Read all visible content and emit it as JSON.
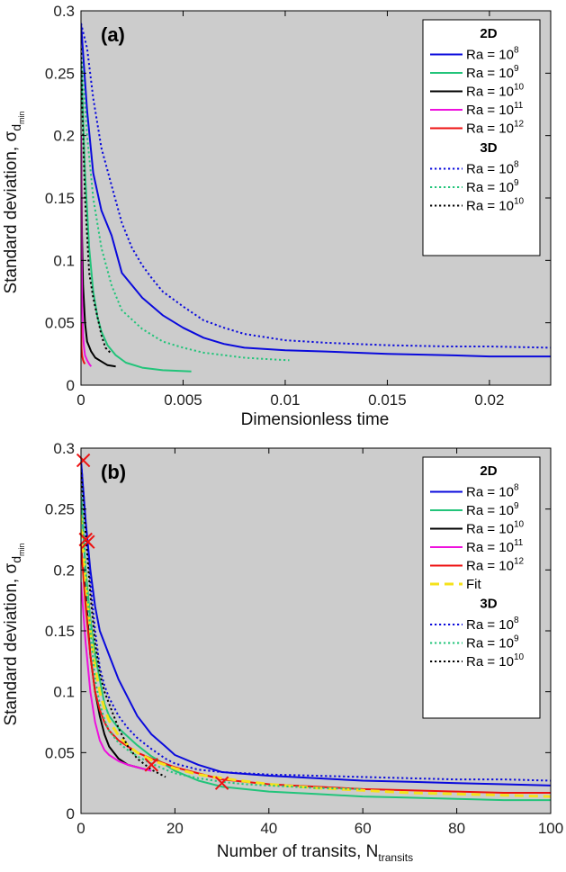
{
  "colors": {
    "blue": "#0a0adc",
    "green": "#22c47a",
    "black": "#000000",
    "magenta": "#ee11dd",
    "red": "#ee1111",
    "yellow": "#f5e21a",
    "axes_bg": "#cccccc"
  },
  "chart_data": [
    {
      "type": "line",
      "panel_label": "(a)",
      "xlabel": "Dimensionless time",
      "ylabel": "Standard deviation, σ",
      "ylabel_sub": "d",
      "ylabel_subsub": "min",
      "xlim": [
        0,
        0.023
      ],
      "ylim": [
        0,
        0.3
      ],
      "xticks": [
        0,
        0.005,
        0.01,
        0.015,
        0.02
      ],
      "xtick_labels": [
        "0",
        "0.005",
        "0.01",
        "0.015",
        "0.02"
      ],
      "yticks": [
        0,
        0.05,
        0.1,
        0.15,
        0.2,
        0.25,
        0.3
      ],
      "ytick_labels": [
        "0",
        "0.05",
        "0.1",
        "0.15",
        "0.2",
        "0.25",
        "0.3"
      ],
      "legend": {
        "position": "top-right",
        "groups": [
          {
            "heading": "2D",
            "entries": [
              {
                "base": "Ra = 10",
                "exp": "8",
                "color": "blue",
                "style": "solid"
              },
              {
                "base": "Ra = 10",
                "exp": "9",
                "color": "green",
                "style": "solid"
              },
              {
                "base": "Ra = 10",
                "exp": "10",
                "color": "black",
                "style": "solid"
              },
              {
                "base": "Ra = 10",
                "exp": "11",
                "color": "magenta",
                "style": "solid"
              },
              {
                "base": "Ra = 10",
                "exp": "12",
                "color": "red",
                "style": "solid"
              }
            ]
          },
          {
            "heading": "3D",
            "entries": [
              {
                "base": "Ra = 10",
                "exp": "8",
                "color": "blue",
                "style": "dotted"
              },
              {
                "base": "Ra = 10",
                "exp": "9",
                "color": "green",
                "style": "dotted"
              },
              {
                "base": "Ra = 10",
                "exp": "10",
                "color": "black",
                "style": "dotted"
              }
            ]
          }
        ]
      },
      "series": [
        {
          "name": "2D Ra=10^8",
          "color": "blue",
          "style": "solid",
          "x": [
            0,
            0.0003,
            0.0006,
            0.001,
            0.0015,
            0.002,
            0.003,
            0.004,
            0.005,
            0.006,
            0.007,
            0.008,
            0.01,
            0.012,
            0.015,
            0.018,
            0.02,
            0.023
          ],
          "y": [
            0.29,
            0.22,
            0.17,
            0.14,
            0.12,
            0.09,
            0.07,
            0.056,
            0.046,
            0.038,
            0.033,
            0.03,
            0.028,
            0.027,
            0.025,
            0.024,
            0.023,
            0.023
          ]
        },
        {
          "name": "2D Ra=10^9",
          "color": "green",
          "style": "solid",
          "x": [
            0,
            0.0002,
            0.0004,
            0.0006,
            0.0008,
            0.001,
            0.0013,
            0.0017,
            0.0022,
            0.003,
            0.004,
            0.0054
          ],
          "y": [
            0.26,
            0.17,
            0.11,
            0.075,
            0.055,
            0.043,
            0.032,
            0.024,
            0.018,
            0.014,
            0.012,
            0.011
          ]
        },
        {
          "name": "2D Ra=10^10",
          "color": "black",
          "style": "solid",
          "x": [
            0,
            5e-05,
            0.0001,
            0.0002,
            0.0003,
            0.0005,
            0.0007,
            0.001,
            0.0013,
            0.0017
          ],
          "y": [
            0.2,
            0.12,
            0.08,
            0.05,
            0.035,
            0.027,
            0.022,
            0.019,
            0.016,
            0.015
          ]
        },
        {
          "name": "2D Ra=10^11",
          "color": "magenta",
          "style": "solid",
          "x": [
            0,
            3e-05,
            6e-05,
            0.0001,
            0.00015,
            0.0002,
            0.0003,
            0.0004,
            0.0005
          ],
          "y": [
            0.2,
            0.1,
            0.06,
            0.04,
            0.03,
            0.024,
            0.02,
            0.017,
            0.015
          ]
        },
        {
          "name": "2D Ra=10^12",
          "color": "red",
          "style": "solid",
          "x": [
            0,
            2e-05,
            5e-05,
            0.0001,
            0.00015,
            0.0002
          ],
          "y": [
            0.05,
            0.03,
            0.024,
            0.02,
            0.018,
            0.017
          ]
        },
        {
          "name": "3D Ra=10^8",
          "color": "blue",
          "style": "dotted",
          "x": [
            0,
            0.0003,
            0.0006,
            0.001,
            0.0015,
            0.002,
            0.0025,
            0.003,
            0.0035,
            0.004,
            0.005,
            0.006,
            0.007,
            0.008,
            0.01,
            0.012,
            0.015,
            0.018,
            0.02,
            0.023
          ],
          "y": [
            0.29,
            0.27,
            0.23,
            0.19,
            0.16,
            0.13,
            0.11,
            0.096,
            0.085,
            0.075,
            0.063,
            0.052,
            0.046,
            0.041,
            0.036,
            0.034,
            0.032,
            0.031,
            0.031,
            0.03
          ]
        },
        {
          "name": "3D Ra=10^9",
          "color": "green",
          "style": "dotted",
          "x": [
            0,
            0.0003,
            0.0006,
            0.001,
            0.0015,
            0.002,
            0.003,
            0.004,
            0.005,
            0.006,
            0.007,
            0.008,
            0.009,
            0.0102
          ],
          "y": [
            0.27,
            0.2,
            0.15,
            0.11,
            0.08,
            0.06,
            0.045,
            0.035,
            0.03,
            0.026,
            0.024,
            0.022,
            0.021,
            0.02
          ]
        },
        {
          "name": "3D Ra=10^10",
          "color": "black",
          "style": "dotted",
          "x": [
            0,
            0.0001,
            0.0002,
            0.0003,
            0.0004,
            0.0006,
            0.0008,
            0.001,
            0.0012,
            0.0015
          ],
          "y": [
            0.27,
            0.2,
            0.15,
            0.12,
            0.09,
            0.07,
            0.055,
            0.04,
            0.03,
            0.025
          ]
        }
      ]
    },
    {
      "type": "line",
      "panel_label": "(b)",
      "xlabel": "Number of transits, N",
      "xlabel_sub": "transits",
      "ylabel": "Standard deviation, σ",
      "ylabel_sub": "d",
      "ylabel_subsub": "min",
      "xlim": [
        0,
        100
      ],
      "ylim": [
        0,
        0.3
      ],
      "xticks": [
        0,
        20,
        40,
        60,
        80,
        100
      ],
      "xtick_labels": [
        "0",
        "20",
        "40",
        "60",
        "80",
        "100"
      ],
      "yticks": [
        0,
        0.05,
        0.1,
        0.15,
        0.2,
        0.25,
        0.3
      ],
      "ytick_labels": [
        "0",
        "0.05",
        "0.1",
        "0.15",
        "0.2",
        "0.25",
        "0.3"
      ],
      "legend": {
        "position": "top-right",
        "groups": [
          {
            "heading": "2D",
            "entries": [
              {
                "base": "Ra = 10",
                "exp": "8",
                "color": "blue",
                "style": "solid"
              },
              {
                "base": "Ra = 10",
                "exp": "9",
                "color": "green",
                "style": "solid"
              },
              {
                "base": "Ra = 10",
                "exp": "10",
                "color": "black",
                "style": "solid"
              },
              {
                "base": "Ra = 10",
                "exp": "11",
                "color": "magenta",
                "style": "solid"
              },
              {
                "base": "Ra = 10",
                "exp": "12",
                "color": "red",
                "style": "solid"
              },
              {
                "base": "Fit",
                "exp": "",
                "color": "yellow",
                "style": "dashed"
              }
            ]
          },
          {
            "heading": "3D",
            "entries": [
              {
                "base": "Ra = 10",
                "exp": "8",
                "color": "blue",
                "style": "dotted"
              },
              {
                "base": "Ra = 10",
                "exp": "9",
                "color": "green",
                "style": "dotted"
              },
              {
                "base": "Ra = 10",
                "exp": "10",
                "color": "black",
                "style": "dotted"
              }
            ]
          }
        ]
      },
      "markers": [
        {
          "x": 0.5,
          "y": 0.29
        },
        {
          "x": 1,
          "y": 0.225
        },
        {
          "x": 1.5,
          "y": 0.223
        },
        {
          "x": 15,
          "y": 0.04
        },
        {
          "x": 30,
          "y": 0.025
        }
      ],
      "series": [
        {
          "name": "2D Ra=10^8",
          "color": "blue",
          "style": "solid",
          "x": [
            0,
            1,
            2,
            3,
            4,
            5,
            6,
            8,
            10,
            12,
            15,
            18,
            20,
            25,
            30,
            40,
            50,
            60,
            70,
            80,
            90,
            100
          ],
          "y": [
            0.29,
            0.24,
            0.2,
            0.17,
            0.15,
            0.14,
            0.13,
            0.11,
            0.095,
            0.08,
            0.065,
            0.055,
            0.048,
            0.04,
            0.034,
            0.031,
            0.029,
            0.027,
            0.026,
            0.025,
            0.024,
            0.023
          ]
        },
        {
          "name": "2D Ra=10^9",
          "color": "green",
          "style": "solid",
          "x": [
            0,
            1,
            2,
            3,
            4,
            5,
            6,
            8,
            10,
            12,
            15,
            18,
            20,
            25,
            30,
            40,
            50,
            60,
            70,
            80,
            90,
            100
          ],
          "y": [
            0.26,
            0.2,
            0.16,
            0.13,
            0.11,
            0.09,
            0.08,
            0.07,
            0.063,
            0.056,
            0.047,
            0.04,
            0.035,
            0.027,
            0.022,
            0.018,
            0.016,
            0.014,
            0.013,
            0.012,
            0.011,
            0.011
          ]
        },
        {
          "name": "2D Ra=10^10",
          "color": "black",
          "style": "solid",
          "x": [
            0,
            1,
            2,
            3,
            4,
            5,
            6,
            8,
            10,
            12,
            14
          ],
          "y": [
            0.22,
            0.18,
            0.13,
            0.1,
            0.08,
            0.065,
            0.055,
            0.045,
            0.04,
            0.038,
            0.036
          ]
        },
        {
          "name": "2D Ra=10^11",
          "color": "magenta",
          "style": "solid",
          "x": [
            0,
            1,
            2,
            3,
            4,
            5,
            6,
            8,
            10,
            12,
            15
          ],
          "y": [
            0.19,
            0.14,
            0.1,
            0.075,
            0.06,
            0.052,
            0.048,
            0.043,
            0.04,
            0.038,
            0.035
          ]
        },
        {
          "name": "2D Ra=10^12",
          "color": "red",
          "style": "solid",
          "x": [
            0,
            1,
            2,
            3,
            4,
            5,
            6,
            8,
            10,
            12,
            15,
            20,
            30,
            40,
            50,
            60,
            70,
            80,
            90,
            100
          ],
          "y": [
            0.22,
            0.17,
            0.13,
            0.1,
            0.085,
            0.075,
            0.068,
            0.06,
            0.055,
            0.05,
            0.045,
            0.038,
            0.028,
            0.024,
            0.022,
            0.02,
            0.019,
            0.018,
            0.017,
            0.017
          ]
        },
        {
          "name": "Fit",
          "color": "yellow",
          "style": "dashed",
          "x": [
            0,
            1,
            2,
            3,
            4,
            5,
            6,
            8,
            10,
            12,
            15,
            20,
            25,
            30,
            40,
            50,
            60,
            70,
            80,
            90,
            100
          ],
          "y": [
            0.245,
            0.19,
            0.15,
            0.12,
            0.1,
            0.086,
            0.076,
            0.064,
            0.056,
            0.05,
            0.044,
            0.037,
            0.032,
            0.029,
            0.024,
            0.021,
            0.019,
            0.017,
            0.016,
            0.015,
            0.014
          ]
        },
        {
          "name": "3D Ra=10^8",
          "color": "blue",
          "style": "dotted",
          "x": [
            0,
            1,
            2,
            3,
            4,
            5,
            6,
            8,
            10,
            12,
            15,
            18,
            20,
            25,
            30,
            40,
            50,
            60,
            70,
            80,
            90,
            100
          ],
          "y": [
            0.29,
            0.24,
            0.19,
            0.15,
            0.12,
            0.105,
            0.095,
            0.08,
            0.07,
            0.062,
            0.053,
            0.045,
            0.041,
            0.036,
            0.034,
            0.032,
            0.031,
            0.03,
            0.029,
            0.028,
            0.028,
            0.027
          ]
        },
        {
          "name": "3D Ra=10^9",
          "color": "green",
          "style": "dotted",
          "x": [
            0,
            1,
            2,
            3,
            4,
            5,
            6,
            8,
            10,
            12,
            15,
            18,
            20,
            25,
            30,
            35,
            40,
            50,
            60
          ],
          "y": [
            0.27,
            0.2,
            0.15,
            0.11,
            0.09,
            0.077,
            0.068,
            0.058,
            0.052,
            0.047,
            0.041,
            0.036,
            0.033,
            0.029,
            0.026,
            0.024,
            0.023,
            0.021,
            0.02
          ]
        },
        {
          "name": "3D Ra=10^10",
          "color": "black",
          "style": "dotted",
          "x": [
            0,
            1,
            2,
            3,
            4,
            5,
            6,
            8,
            10,
            12,
            15,
            18
          ],
          "y": [
            0.28,
            0.23,
            0.18,
            0.14,
            0.115,
            0.1,
            0.09,
            0.07,
            0.055,
            0.045,
            0.036,
            0.03
          ]
        }
      ]
    }
  ]
}
